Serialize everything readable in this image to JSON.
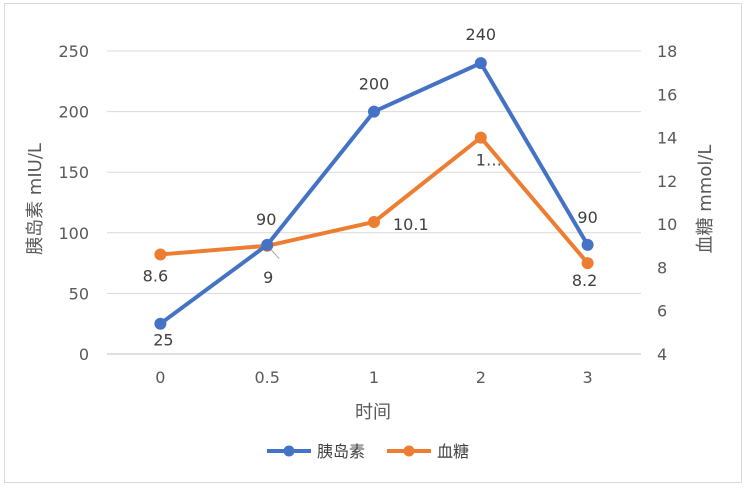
{
  "chart_data": {
    "type": "line",
    "title": "",
    "categories": [
      "0",
      "0.5",
      "1",
      "2",
      "3"
    ],
    "xlabel": "时间",
    "ylabel_left": "胰岛素 mIU/L",
    "ylabel_right": "血糖 mmol/L",
    "y_left": {
      "lim": [
        0,
        250
      ],
      "ticks": [
        0,
        50,
        100,
        150,
        200,
        250
      ]
    },
    "y_right": {
      "lim": [
        4,
        18
      ],
      "ticks": [
        4,
        6,
        8,
        10,
        12,
        14,
        16,
        18
      ]
    },
    "grid": "horizontal",
    "legend_position": "bottom",
    "series": [
      {
        "name": "胰岛素",
        "axis": "left",
        "color": "#4472c4",
        "values": [
          25,
          90,
          200,
          240,
          90
        ],
        "labels": [
          "25",
          "90",
          "200",
          "240",
          "90"
        ]
      },
      {
        "name": "血糖",
        "axis": "right",
        "color": "#ed7d31",
        "values": [
          8.6,
          9,
          10.1,
          14,
          8.2
        ],
        "labels": [
          "8.6",
          "9",
          "10.1",
          "1…",
          "8.2"
        ]
      }
    ]
  }
}
